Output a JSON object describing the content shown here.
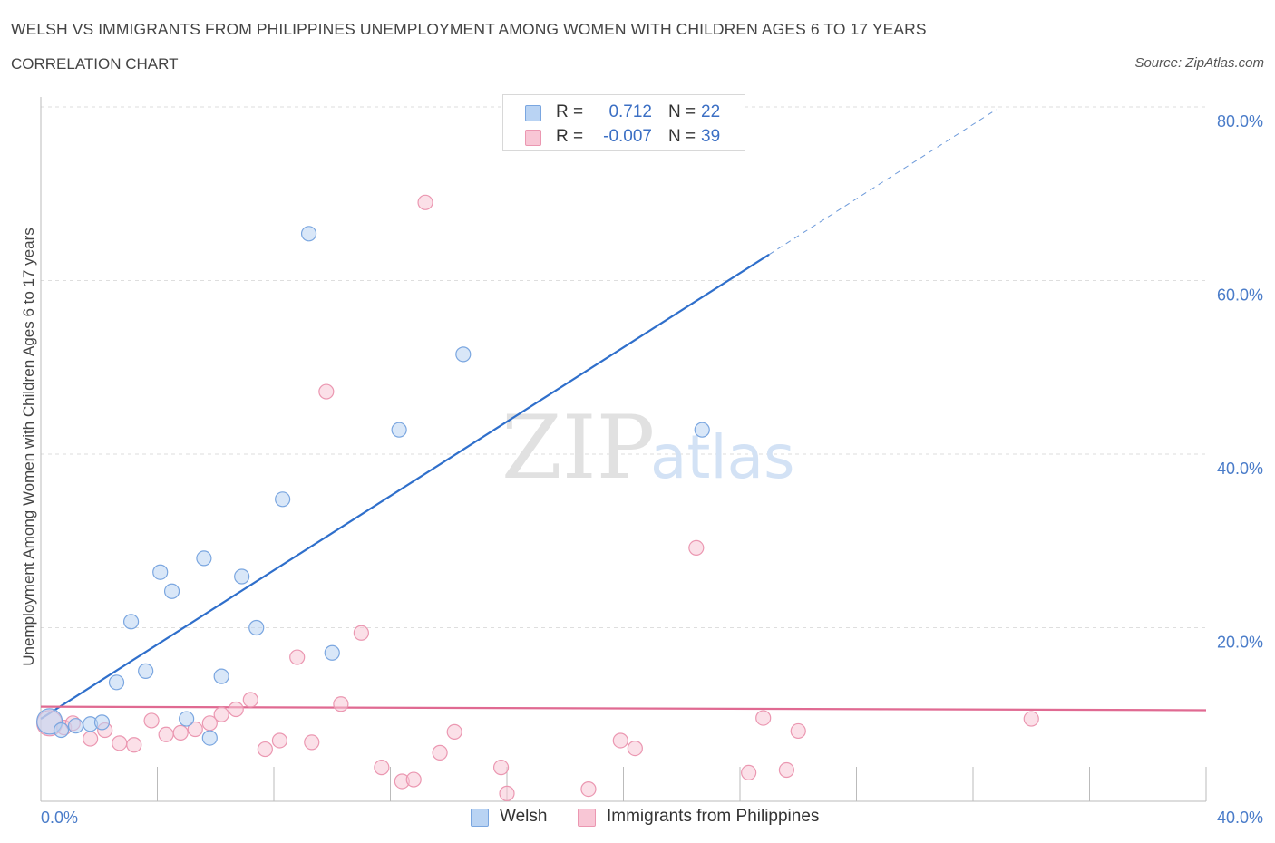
{
  "title": "WELSH VS IMMIGRANTS FROM PHILIPPINES UNEMPLOYMENT AMONG WOMEN WITH CHILDREN AGES 6 TO 17 YEARS",
  "subtitle": "CORRELATION CHART",
  "source": "Source: ZipAtlas.com",
  "watermark": {
    "zip": "ZIP",
    "atlas": "atlas"
  },
  "legend_top": {
    "rows": [
      {
        "r_label": "R =",
        "r_value": "0.712",
        "n_label": "N =",
        "n_value": "22"
      },
      {
        "r_label": "R =",
        "r_value": "-0.007",
        "n_label": "N =",
        "n_value": "39"
      }
    ]
  },
  "colors": {
    "welsh_fill": "#b9d3f3",
    "welsh_stroke": "#7aa6e0",
    "welsh_line": "#2f6fcb",
    "phil_fill": "#f8c6d5",
    "phil_stroke": "#eb97b1",
    "phil_line": "#e06a92",
    "tick_label": "#4a7cc9",
    "grid": "#dedede"
  },
  "chart_data": {
    "type": "scatter",
    "title": "WELSH VS IMMIGRANTS FROM PHILIPPINES UNEMPLOYMENT AMONG WOMEN WITH CHILDREN AGES 6 TO 17 YEARS",
    "xlabel": "",
    "ylabel": "Unemployment Among Women with Children Ages 6 to 17 years",
    "xlim": [
      0,
      40
    ],
    "ylim": [
      0,
      80
    ],
    "x_tick_labels": [
      "0.0%",
      "40.0%"
    ],
    "y_ticks": [
      {
        "value": 20,
        "label": "20.0%"
      },
      {
        "value": 40,
        "label": "40.0%"
      },
      {
        "value": 60,
        "label": "60.0%"
      },
      {
        "value": 80,
        "label": "80.0%"
      }
    ],
    "series": [
      {
        "name": "Welsh",
        "R": 0.712,
        "N": 22,
        "points": [
          {
            "x": 0.3,
            "y": 9.2,
            "size": "large"
          },
          {
            "x": 0.7,
            "y": 8.2
          },
          {
            "x": 1.2,
            "y": 8.7
          },
          {
            "x": 1.7,
            "y": 8.9
          },
          {
            "x": 2.1,
            "y": 9.1
          },
          {
            "x": 2.6,
            "y": 13.7
          },
          {
            "x": 3.1,
            "y": 20.7
          },
          {
            "x": 3.6,
            "y": 15.0
          },
          {
            "x": 4.1,
            "y": 26.4
          },
          {
            "x": 4.5,
            "y": 24.2
          },
          {
            "x": 5.0,
            "y": 9.5
          },
          {
            "x": 5.6,
            "y": 28.0
          },
          {
            "x": 5.8,
            "y": 7.3
          },
          {
            "x": 6.2,
            "y": 14.4
          },
          {
            "x": 6.9,
            "y": 25.9
          },
          {
            "x": 7.4,
            "y": 20.0
          },
          {
            "x": 8.3,
            "y": 34.8
          },
          {
            "x": 9.2,
            "y": 65.4
          },
          {
            "x": 10.0,
            "y": 17.1
          },
          {
            "x": 12.3,
            "y": 42.8
          },
          {
            "x": 14.5,
            "y": 51.5
          },
          {
            "x": 22.7,
            "y": 42.8
          }
        ],
        "trend": {
          "x0": 0.0,
          "y0": 9.5,
          "x1": 25.0,
          "y1": 63.0,
          "x_dash_end": 32.8,
          "y_dash_end": 79.7
        }
      },
      {
        "name": "Immigrants from Philippines",
        "R": -0.007,
        "N": 39,
        "points": [
          {
            "x": 0.3,
            "y": 9.0,
            "size": "large"
          },
          {
            "x": 0.8,
            "y": 8.5
          },
          {
            "x": 1.1,
            "y": 9.0
          },
          {
            "x": 1.7,
            "y": 7.2
          },
          {
            "x": 2.2,
            "y": 8.2
          },
          {
            "x": 2.7,
            "y": 6.7
          },
          {
            "x": 3.2,
            "y": 6.5
          },
          {
            "x": 3.8,
            "y": 9.3
          },
          {
            "x": 4.3,
            "y": 7.7
          },
          {
            "x": 4.8,
            "y": 7.9
          },
          {
            "x": 5.3,
            "y": 8.3
          },
          {
            "x": 5.8,
            "y": 9.0
          },
          {
            "x": 6.2,
            "y": 10.0
          },
          {
            "x": 6.7,
            "y": 10.6
          },
          {
            "x": 7.2,
            "y": 11.7
          },
          {
            "x": 7.7,
            "y": 6.0
          },
          {
            "x": 8.2,
            "y": 7.0
          },
          {
            "x": 8.8,
            "y": 16.6
          },
          {
            "x": 9.3,
            "y": 6.8
          },
          {
            "x": 9.8,
            "y": 47.2
          },
          {
            "x": 10.3,
            "y": 11.2
          },
          {
            "x": 11.0,
            "y": 19.4
          },
          {
            "x": 11.7,
            "y": 3.9
          },
          {
            "x": 12.4,
            "y": 2.3
          },
          {
            "x": 12.8,
            "y": 2.5
          },
          {
            "x": 13.2,
            "y": 69.0
          },
          {
            "x": 13.7,
            "y": 5.6
          },
          {
            "x": 14.2,
            "y": 8.0
          },
          {
            "x": 15.8,
            "y": 3.9
          },
          {
            "x": 16.0,
            "y": 0.9
          },
          {
            "x": 18.8,
            "y": 1.4
          },
          {
            "x": 19.9,
            "y": 7.0
          },
          {
            "x": 20.4,
            "y": 6.1
          },
          {
            "x": 22.5,
            "y": 29.2
          },
          {
            "x": 24.3,
            "y": 3.3
          },
          {
            "x": 24.8,
            "y": 9.6
          },
          {
            "x": 25.6,
            "y": 3.6
          },
          {
            "x": 26.0,
            "y": 8.1
          },
          {
            "x": 34.0,
            "y": 9.5
          }
        ],
        "trend": {
          "x0": 0.0,
          "y0": 10.9,
          "x1": 40.0,
          "y1": 10.5
        }
      }
    ]
  },
  "legend_bottom": {
    "items": [
      {
        "label": "Welsh"
      },
      {
        "label": "Immigrants from Philippines"
      }
    ]
  }
}
